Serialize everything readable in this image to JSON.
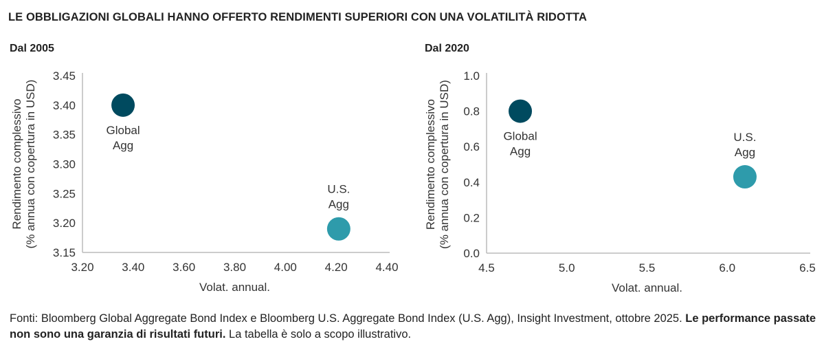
{
  "title": "LE OBBLIGAZIONI GLOBALI HANNO OFFERTO RENDIMENTI SUPERIORI CON UNA VOLATILITÀ RIDOTTA",
  "footnote": {
    "part1": "Fonti: Bloomberg Global Aggregate Bond Index e Bloomberg U.S. Aggregate Bond Index (U.S. Agg), Insight Investment, ottobre 2025. ",
    "bold": "Le performance passate non sono una garanzia di risultati futuri.",
    "part2": " La tabella è solo a scopo illustrativo."
  },
  "chart_data": [
    {
      "type": "scatter",
      "title": "Dal 2005",
      "xlabel": "Volat. annual.",
      "ylabel": [
        "Rendimento complessivo",
        "(% annua con copertura in USD)"
      ],
      "xlim": [
        3.2,
        4.4
      ],
      "ylim": [
        3.15,
        3.45
      ],
      "xticks": [
        "3.20",
        "3.40",
        "3.60",
        "3.80",
        "4.00",
        "4.20",
        "4.40"
      ],
      "yticks": [
        "3.15",
        "3.20",
        "3.25",
        "3.30",
        "3.35",
        "3.40",
        "3.45"
      ],
      "grid": false,
      "points": [
        {
          "label": [
            "Global",
            "Agg"
          ],
          "x": 3.36,
          "y": 3.4,
          "color": "#004a5f",
          "label_pos": "below"
        },
        {
          "label": [
            "U.S.",
            "Agg"
          ],
          "x": 4.21,
          "y": 3.19,
          "color": "#2e9bab",
          "label_pos": "above"
        }
      ]
    },
    {
      "type": "scatter",
      "title": "Dal 2020",
      "xlabel": "Volat. annual.",
      "ylabel": [
        "Rendimento complessivo",
        "(% annua con copertura in USD)"
      ],
      "xlim": [
        4.5,
        6.5
      ],
      "ylim": [
        0.0,
        1.0
      ],
      "xticks": [
        "4.5",
        "5.0",
        "5.5",
        "6.0",
        "6.5"
      ],
      "yticks": [
        "0.0",
        "0.2",
        "0.4",
        "0.6",
        "0.8",
        "1.0"
      ],
      "grid": false,
      "points": [
        {
          "label": [
            "Global",
            "Agg"
          ],
          "x": 4.71,
          "y": 0.8,
          "color": "#004a5f",
          "label_pos": "below"
        },
        {
          "label": [
            "U.S.",
            "Agg"
          ],
          "x": 6.11,
          "y": 0.43,
          "color": "#2e9bab",
          "label_pos": "above"
        }
      ]
    }
  ]
}
